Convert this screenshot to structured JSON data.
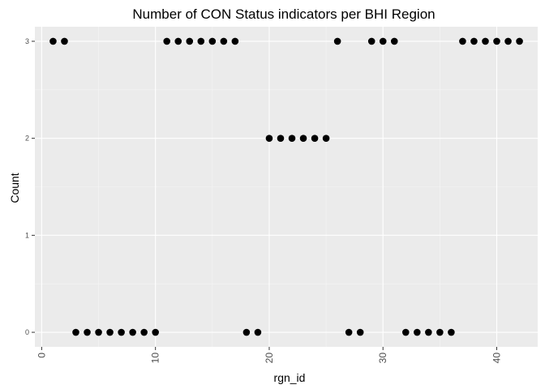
{
  "chart_data": {
    "type": "scatter",
    "title": "Number of CON Status indicators per BHI Region",
    "xlabel": "rgn_id",
    "ylabel": "Count",
    "xlim": [
      -0.6,
      43.6
    ],
    "ylim": [
      -0.15,
      3.15
    ],
    "x_ticks": [
      0,
      10,
      20,
      30,
      40
    ],
    "x_tick_labels": [
      "0",
      "10",
      "20",
      "30",
      "40"
    ],
    "y_ticks": [
      0,
      1,
      2,
      3
    ],
    "y_tick_labels": [
      "0",
      "1",
      "2",
      "3"
    ],
    "grid": true,
    "legend": "none",
    "colors": {
      "panel": "#ebebeb",
      "grid_major": "#ffffff",
      "grid_minor": "#f5f5f5",
      "point": "#000000"
    },
    "x": [
      1,
      2,
      3,
      4,
      5,
      6,
      7,
      8,
      9,
      10,
      11,
      12,
      13,
      14,
      15,
      16,
      17,
      18,
      19,
      20,
      21,
      22,
      23,
      24,
      25,
      26,
      27,
      28,
      29,
      30,
      31,
      32,
      33,
      34,
      35,
      36,
      37,
      38,
      39,
      40,
      41,
      42
    ],
    "y": [
      3,
      3,
      0,
      0,
      0,
      0,
      0,
      0,
      0,
      0,
      3,
      3,
      3,
      3,
      3,
      3,
      3,
      0,
      0,
      2,
      2,
      2,
      2,
      2,
      2,
      3,
      0,
      0,
      3,
      3,
      3,
      0,
      0,
      0,
      0,
      0,
      3,
      3,
      3,
      3,
      3,
      3
    ]
  }
}
